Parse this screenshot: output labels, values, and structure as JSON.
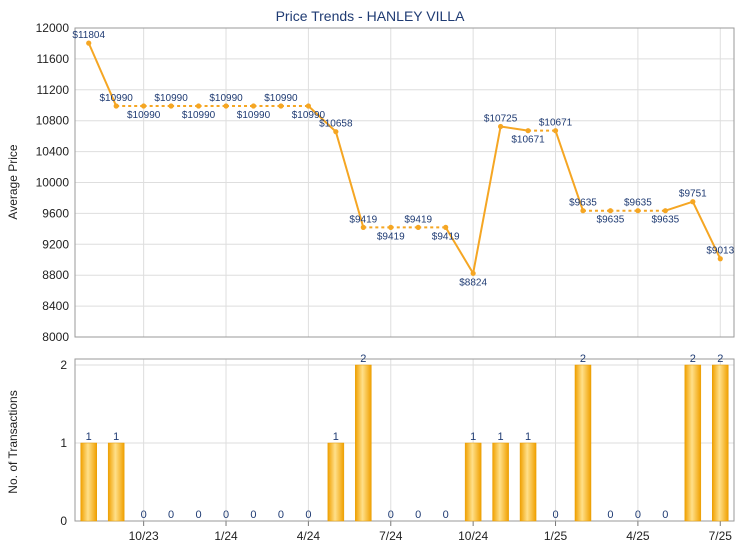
{
  "chart_data": [
    {
      "type": "line",
      "title": "Price Trends - HANLEY VILLA",
      "ylabel": "Average Price",
      "ylim": [
        8000,
        12000
      ],
      "yticks": [
        8000,
        8400,
        8800,
        9200,
        9600,
        10000,
        10400,
        10800,
        11200,
        11600,
        12000
      ],
      "grid": true,
      "series_color": "#f5a623",
      "points": [
        {
          "i": 0,
          "y": 11804,
          "label": "$11804"
        },
        {
          "i": 1,
          "y": 10990,
          "label": "$10990"
        },
        {
          "i": 2,
          "y": 10990,
          "label": "$10990"
        },
        {
          "i": 3,
          "y": 10990,
          "label": "$10990"
        },
        {
          "i": 4,
          "y": 10990,
          "label": "$10990"
        },
        {
          "i": 5,
          "y": 10990,
          "label": "$10990"
        },
        {
          "i": 6,
          "y": 10990,
          "label": "$10990"
        },
        {
          "i": 7,
          "y": 10990,
          "label": "$10990"
        },
        {
          "i": 8,
          "y": 10990,
          "label": "$10990"
        },
        {
          "i": 9,
          "y": 10658,
          "label": "$10658"
        },
        {
          "i": 10,
          "y": 9419,
          "label": "$9419"
        },
        {
          "i": 11,
          "y": 9419,
          "label": "$9419"
        },
        {
          "i": 12,
          "y": 9419,
          "label": "$9419"
        },
        {
          "i": 13,
          "y": 9419,
          "label": "$9419"
        },
        {
          "i": 14,
          "y": 8824,
          "label": "$8824"
        },
        {
          "i": 15,
          "y": 10725,
          "label": "$10725"
        },
        {
          "i": 16,
          "y": 10671,
          "label": "$10671"
        },
        {
          "i": 17,
          "y": 10671,
          "label": "$10671"
        },
        {
          "i": 18,
          "y": 9635,
          "label": "$9635"
        },
        {
          "i": 19,
          "y": 9635,
          "label": "$9635"
        },
        {
          "i": 20,
          "y": 9635,
          "label": "$9635"
        },
        {
          "i": 21,
          "y": 9635,
          "label": "$9635"
        },
        {
          "i": 22,
          "y": 9751,
          "label": "$9751"
        },
        {
          "i": 23,
          "y": 9013,
          "label": "$9013"
        }
      ]
    },
    {
      "type": "bar",
      "ylabel": "No. of Transactions",
      "ylim": [
        0,
        2
      ],
      "yticks": [
        0,
        1,
        2
      ],
      "values": [
        1,
        1,
        0,
        0,
        0,
        0,
        0,
        0,
        0,
        1,
        2,
        0,
        0,
        0,
        1,
        1,
        1,
        0,
        2,
        0,
        0,
        0,
        2,
        2
      ],
      "value_labels": [
        "1",
        "1",
        "0",
        "0",
        "0",
        "0",
        "0",
        "0",
        "0",
        "1",
        "2",
        "0",
        "0",
        "0",
        "1",
        "1",
        "1",
        "0",
        "2",
        "0",
        "0",
        "0",
        "2",
        "2"
      ],
      "xtick_labels": [
        {
          "i": 2,
          "label": "10/23"
        },
        {
          "i": 5,
          "label": "1/24"
        },
        {
          "i": 8,
          "label": "4/24"
        },
        {
          "i": 11,
          "label": "7/24"
        },
        {
          "i": 14,
          "label": "10/24"
        },
        {
          "i": 17,
          "label": "1/25"
        },
        {
          "i": 20,
          "label": "4/25"
        },
        {
          "i": 23,
          "label": "7/25"
        }
      ],
      "bar_color": "#f5a623"
    }
  ]
}
